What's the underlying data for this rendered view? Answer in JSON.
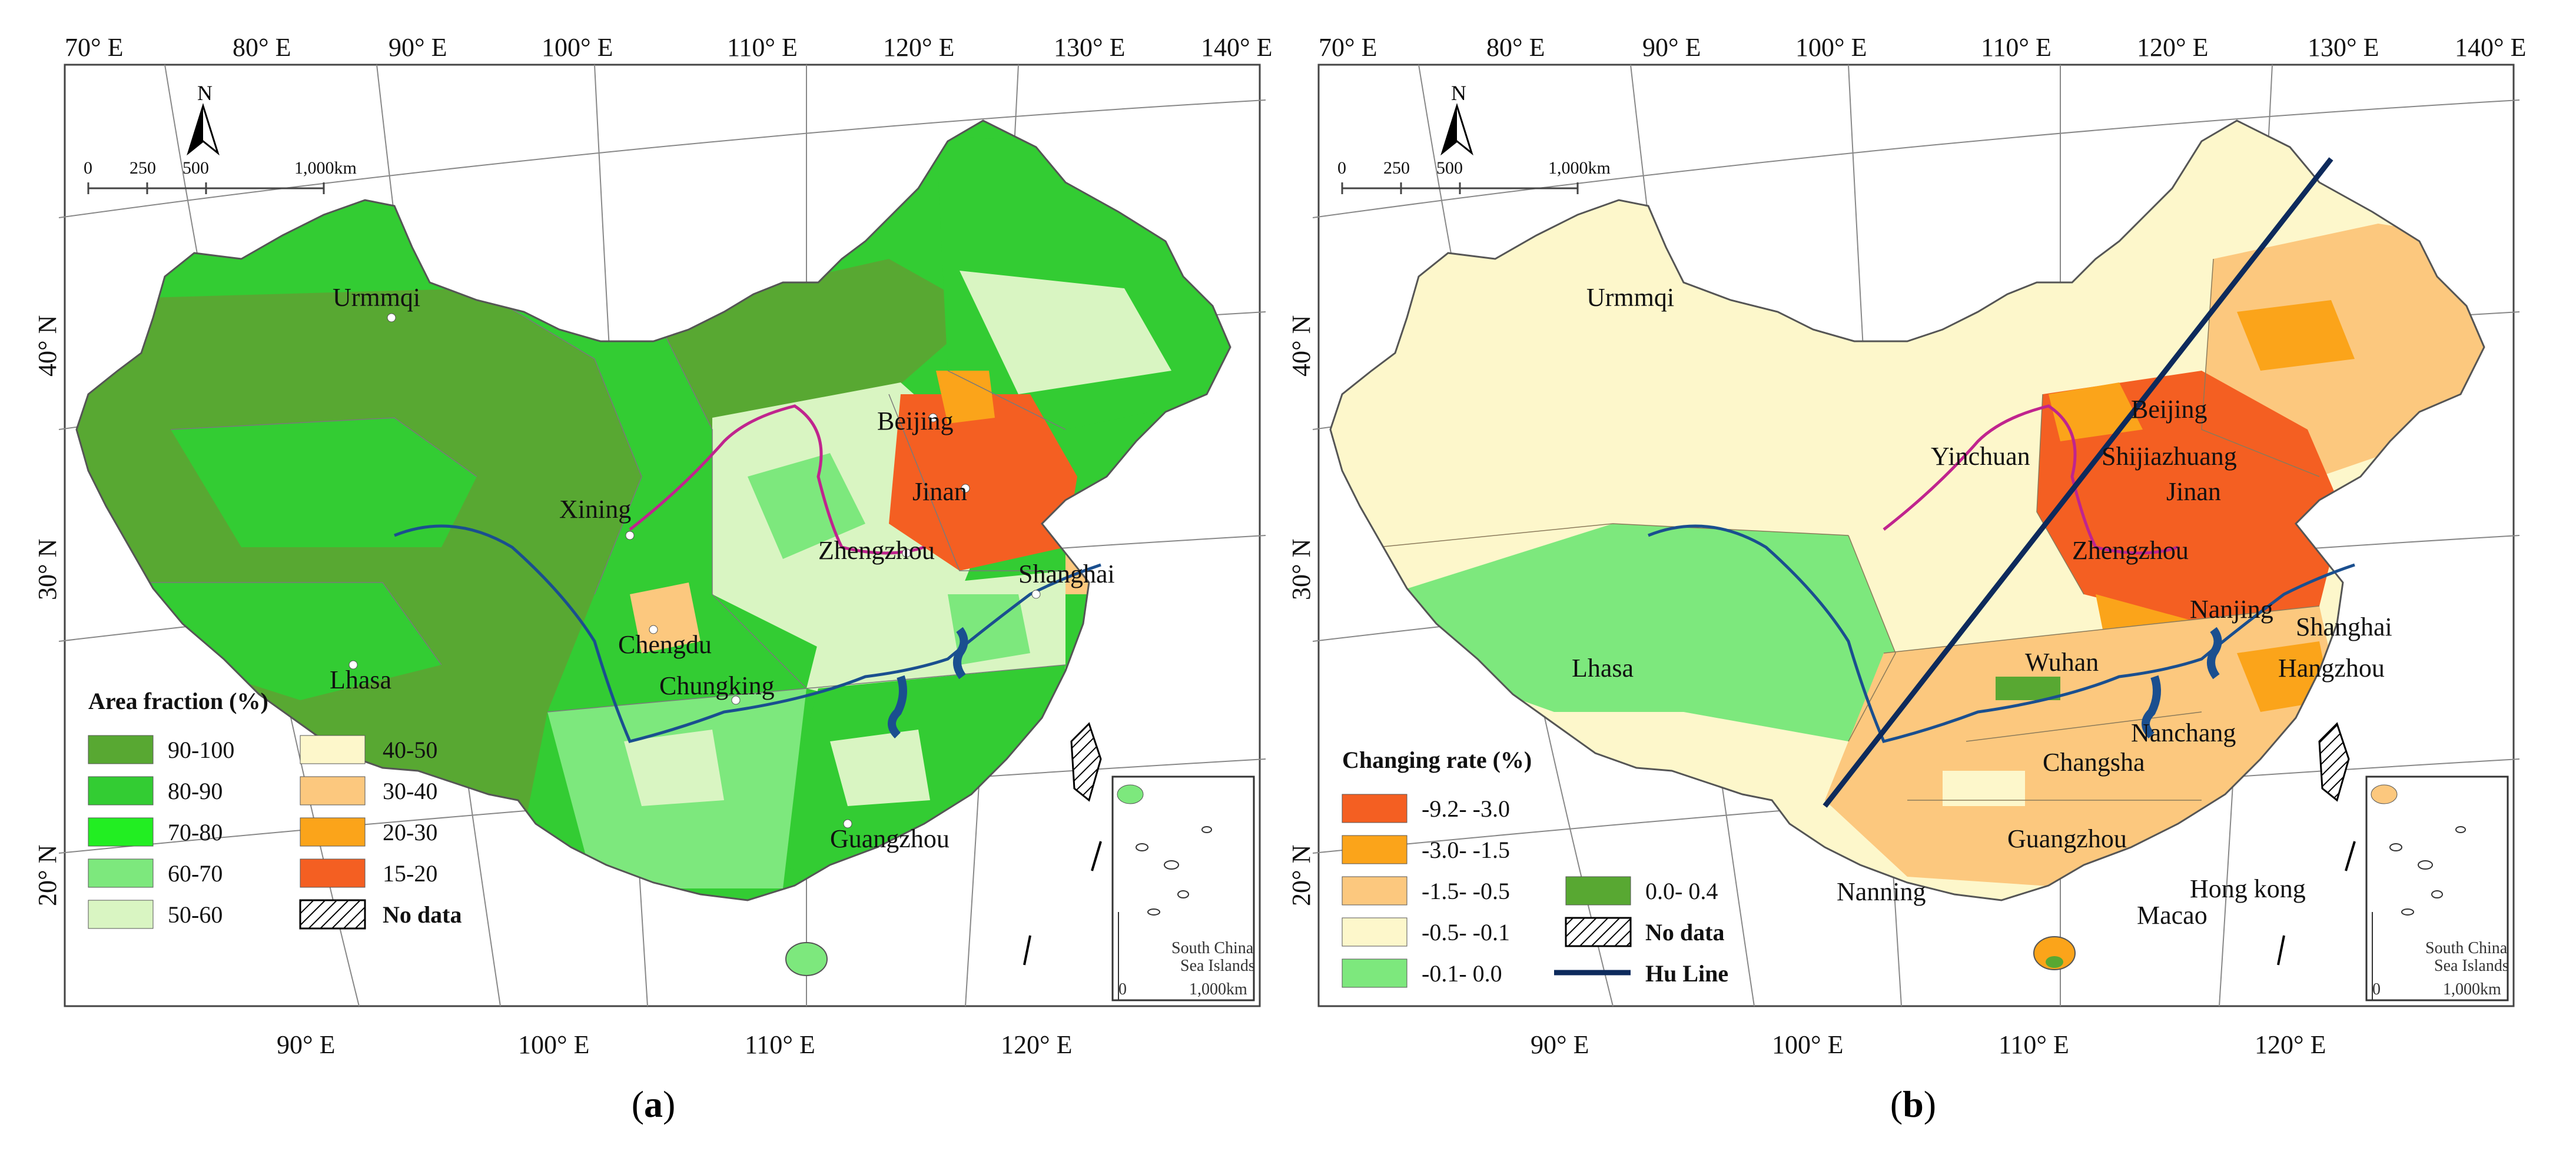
{
  "colors": {
    "c90_100": "#58a832",
    "c80_90": "#33cc33",
    "c70_80": "#22ee22",
    "c60_70": "#7de87d",
    "c50_60": "#d9f5c2",
    "c40_50": "#fdf7cb",
    "c30_40": "#fcc87e",
    "c20_30": "#fba41a",
    "c15_20": "#f45f22",
    "r1": "#f45f22",
    "r2": "#fba41a",
    "r3": "#fcc87e",
    "r4": "#fdf7cb",
    "r5": "#7de87d",
    "r6": "#58a832",
    "river": "#1a4f8f",
    "yellow_river": "#c0248e",
    "hu_line": "#0d2a5c"
  },
  "map_a": {
    "caption_letter": "a",
    "top_lon_ticks": [
      "70° E",
      "80° E",
      "90° E",
      "100° E",
      "110° E",
      "120° E",
      "130° E",
      "140° E"
    ],
    "bottom_lon_ticks": [
      "90° E",
      "100° E",
      "110° E",
      "120° E"
    ],
    "lat_ticks": [
      "40° N",
      "30° N",
      "20° N"
    ],
    "north": "N",
    "scale_labels": [
      "0",
      "250",
      "500",
      "1,000km"
    ],
    "cities": [
      "Urmmqi",
      "Beijing",
      "Jinan",
      "Xining",
      "Zhengzhou",
      "Shanghai",
      "Chengdu",
      "Chungking",
      "Lhasa",
      "Guangzhou"
    ],
    "legend_title": "Area fraction (%)",
    "legend": [
      {
        "label": "90-100",
        "color": "#58a832"
      },
      {
        "label": "80-90",
        "color": "#33cc33"
      },
      {
        "label": "70-80",
        "color": "#22ee22"
      },
      {
        "label": "60-70",
        "color": "#7de87d"
      },
      {
        "label": "50-60",
        "color": "#d9f5c2"
      },
      {
        "label": "40-50",
        "color": "#fdf7cb"
      },
      {
        "label": "30-40",
        "color": "#fcc87e"
      },
      {
        "label": "20-30",
        "color": "#fba41a"
      },
      {
        "label": "15-20",
        "color": "#f45f22"
      },
      {
        "label": "No data",
        "color": "hatched"
      }
    ],
    "inset_labels": [
      "South China",
      "Sea Islands",
      "0",
      "1,000km"
    ]
  },
  "map_b": {
    "caption_letter": "b",
    "top_lon_ticks": [
      "70° E",
      "80° E",
      "90° E",
      "100° E",
      "110° E",
      "120° E",
      "130° E",
      "140° E"
    ],
    "bottom_lon_ticks": [
      "90° E",
      "100° E",
      "110° E",
      "120° E"
    ],
    "lat_ticks": [
      "40° N",
      "30° N",
      "20° N"
    ],
    "north": "N",
    "scale_labels": [
      "0",
      "250",
      "500",
      "1,000km"
    ],
    "cities": [
      "Urmmqi",
      "Beijing",
      "Yinchuan",
      "Shijiazhuang",
      "Jinan",
      "Zhengzhou",
      "Nanjing",
      "Shanghai",
      "Hangzhou",
      "Wuhan",
      "Lhasa",
      "Nanchang",
      "Changsha",
      "Guangzhou",
      "Nanning",
      "Hong kong",
      "Macao"
    ],
    "legend_title": "Changing rate (%)",
    "legend": [
      {
        "label": "-9.2- -3.0",
        "color": "#f45f22"
      },
      {
        "label": "-3.0- -1.5",
        "color": "#fba41a"
      },
      {
        "label": "-1.5- -0.5",
        "color": "#fcc87e"
      },
      {
        "label": "-0.5- -0.1",
        "color": "#fdf7cb"
      },
      {
        "label": "-0.1- 0.0",
        "color": "#7de87d"
      },
      {
        "label": "0.0- 0.4",
        "color": "#58a832"
      },
      {
        "label": "No data",
        "color": "hatched"
      },
      {
        "label": "Hu Line",
        "color": "#0d2a5c"
      }
    ],
    "inset_labels": [
      "South China",
      "Sea Islands",
      "0",
      "1,000km"
    ]
  }
}
